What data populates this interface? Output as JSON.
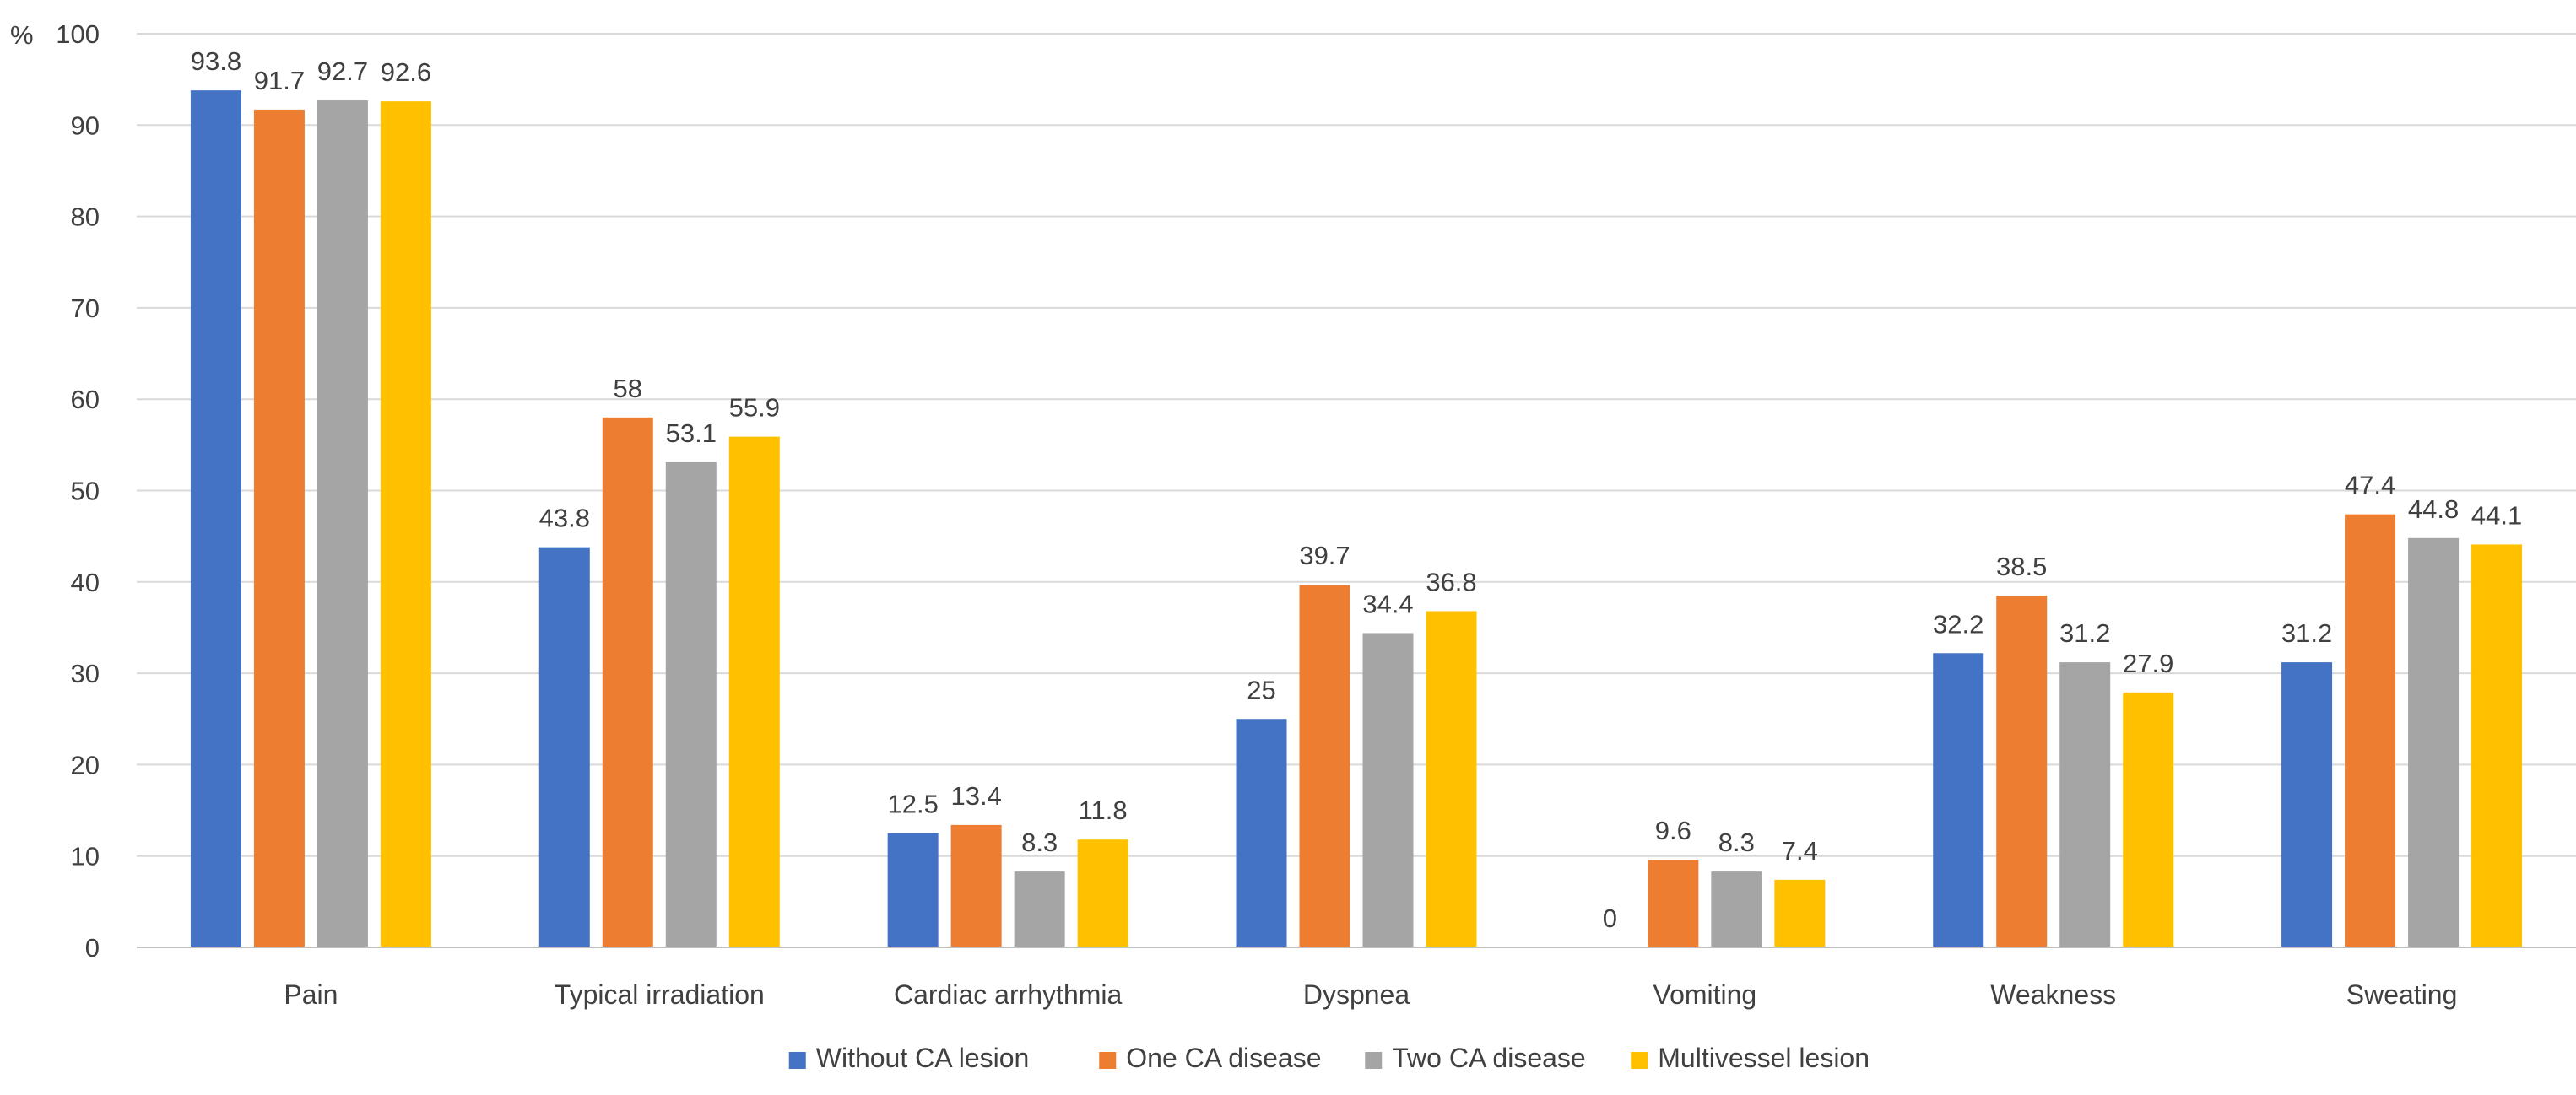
{
  "chart_data": {
    "type": "bar",
    "title": "",
    "xlabel": "",
    "ylabel": "%",
    "ylim": [
      0,
      100
    ],
    "yticks": [
      0,
      10,
      20,
      30,
      40,
      50,
      60,
      70,
      80,
      90,
      100
    ],
    "grid": true,
    "legend_position": "bottom",
    "categories": [
      "Pain",
      "Typical irradiation",
      "Cardiac arrhythmia",
      "Dyspnea",
      "Vomiting",
      "Weakness",
      "Sweating"
    ],
    "series": [
      {
        "name": "Without CA lesion",
        "color": "#4472C4",
        "values": [
          93.8,
          43.8,
          12.5,
          25,
          0,
          32.2,
          31.2
        ]
      },
      {
        "name": "One CA disease",
        "color": "#ED7D31",
        "values": [
          91.7,
          58,
          13.4,
          39.7,
          9.6,
          38.5,
          47.4
        ]
      },
      {
        "name": "Two CA disease",
        "color": "#A5A5A5",
        "values": [
          92.7,
          53.1,
          8.3,
          34.4,
          8.3,
          31.2,
          44.8
        ]
      },
      {
        "name": "Multivessel lesion",
        "color": "#FFC000",
        "values": [
          92.6,
          55.9,
          11.8,
          36.8,
          7.4,
          27.9,
          44.1
        ]
      }
    ]
  }
}
